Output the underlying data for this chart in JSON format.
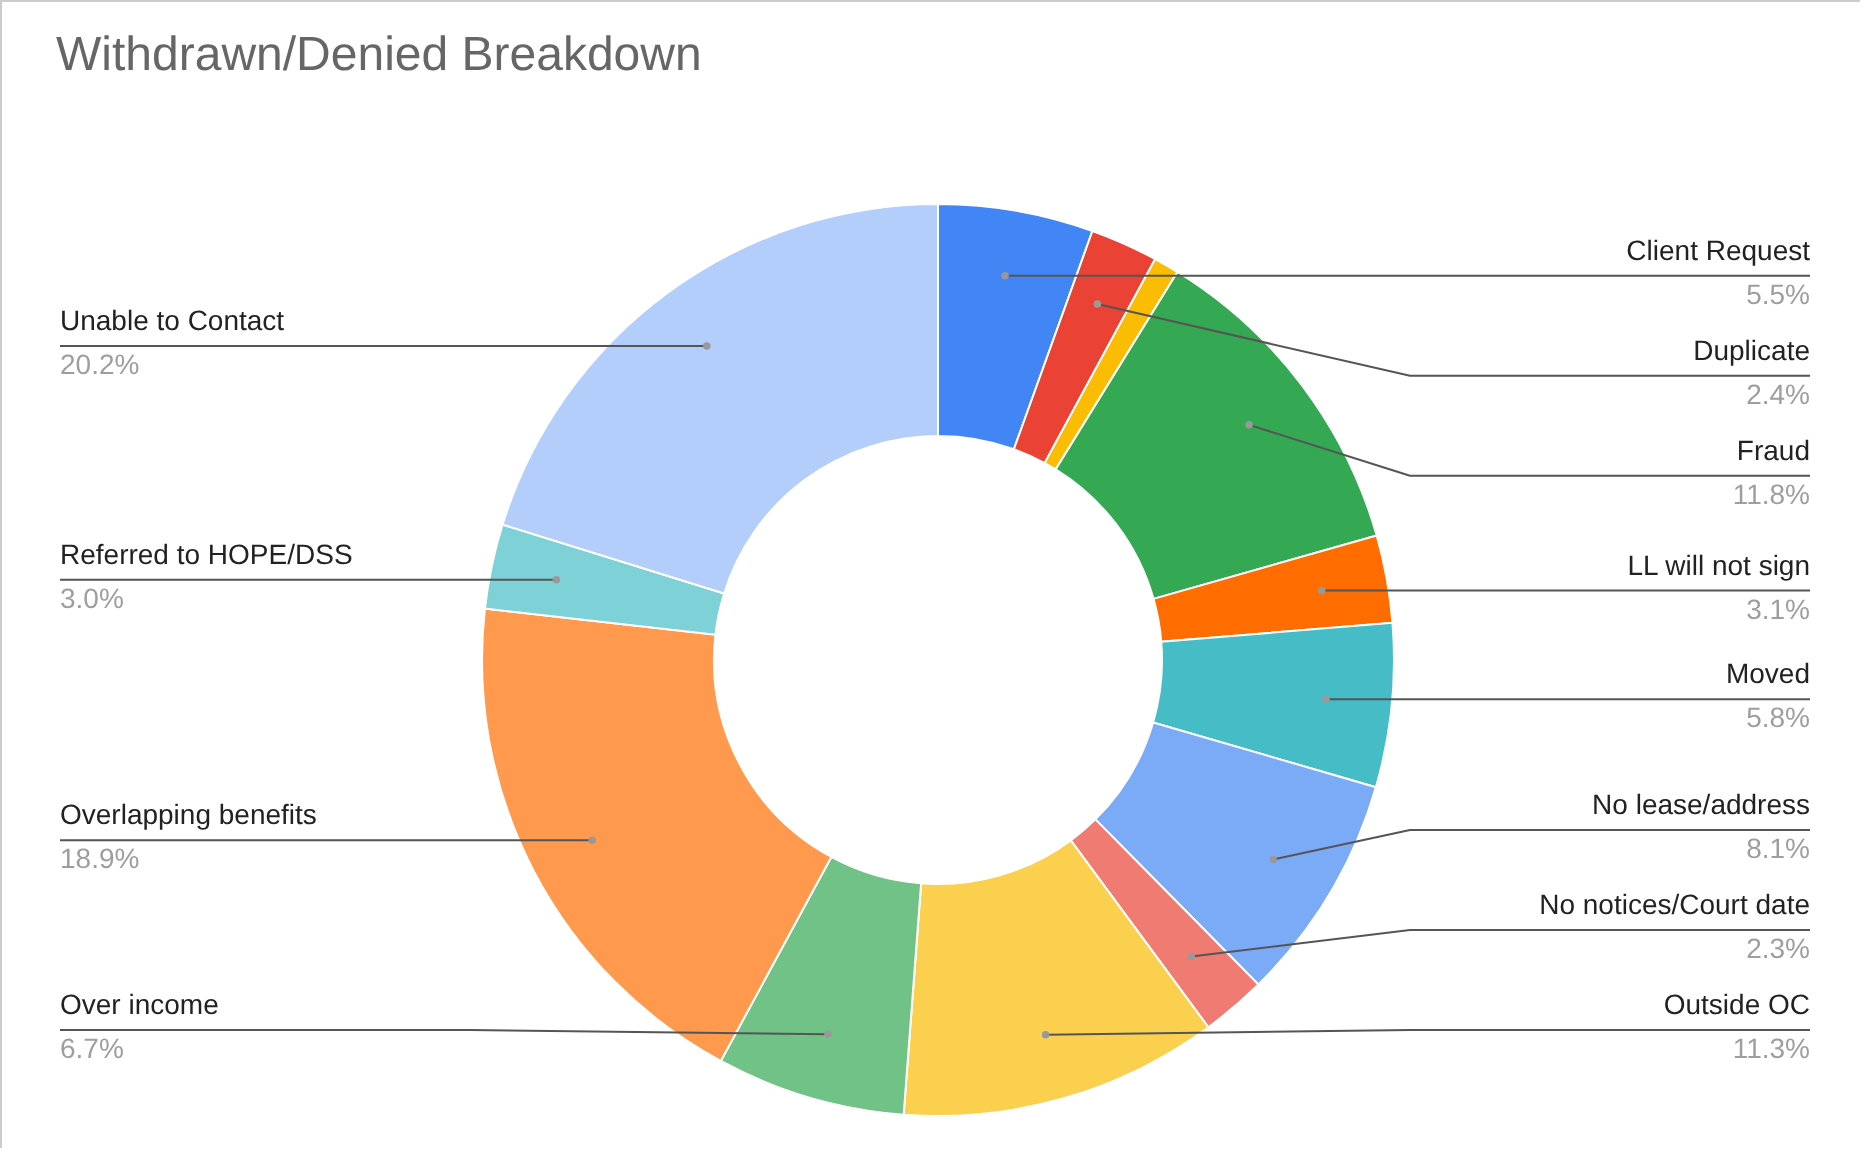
{
  "chart_data": {
    "type": "donut",
    "title": "Withdrawn/Denied Breakdown",
    "categories": [
      "Client Request",
      "Duplicate",
      null,
      "Fraud",
      "LL will not sign",
      "Moved",
      "No lease/address",
      "No notices/Court date",
      "Outside OC",
      "Over income",
      "Overlapping benefits",
      "Referred to HOPE/DSS",
      "Unable to Contact"
    ],
    "values": [
      5.5,
      2.4,
      0.9,
      11.8,
      3.1,
      5.8,
      8.1,
      2.3,
      11.3,
      6.7,
      18.9,
      3.0,
      20.2
    ],
    "colors": [
      "#4285f4",
      "#ea4335",
      "#fbbc04",
      "#34a853",
      "#ff6d01",
      "#46bdc6",
      "#7baaf7",
      "#f07b72",
      "#fcd04f",
      "#71c287",
      "#ff994d",
      "#7ed1d7",
      "#b3cefb"
    ],
    "value_labels": [
      "5.5%",
      "2.4%",
      null,
      "11.8%",
      "3.1%",
      "5.8%",
      "8.1%",
      "2.3%",
      "11.3%",
      "6.7%",
      "18.9%",
      "3.0%",
      "20.2%"
    ]
  }
}
